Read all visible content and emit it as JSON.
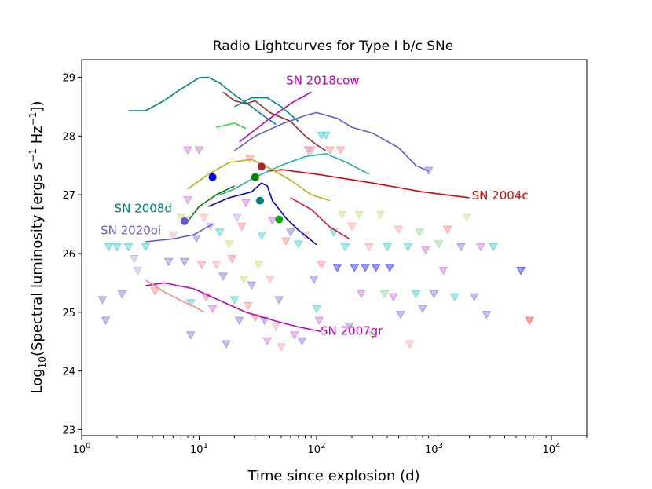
{
  "chart_data": {
    "type": "scatter",
    "title": "Radio Lightcurves for Type I b/c SNe",
    "xlabel": "Time since explosion (d)",
    "ylabel": "Log10(Spectral luminosity [ergs s^-1 Hz^-1])",
    "xscale": "log",
    "xlim": [
      1,
      20000
    ],
    "ylim": [
      22.9,
      29.3
    ],
    "x_ticks": [
      {
        "value": 1,
        "base": "10",
        "exp": "0"
      },
      {
        "value": 10,
        "base": "10",
        "exp": "1"
      },
      {
        "value": 100,
        "base": "10",
        "exp": "2"
      },
      {
        "value": 1000,
        "base": "10",
        "exp": "3"
      },
      {
        "value": 10000,
        "base": "10",
        "exp": "4"
      }
    ],
    "y_ticks": [
      "23",
      "24",
      "25",
      "26",
      "27",
      "28",
      "29"
    ],
    "annotations": [
      {
        "text": "SN 2018cow",
        "x": 55,
        "y": 28.88,
        "color": "#bf00bf"
      },
      {
        "text": "SN 2004c",
        "x": 2100,
        "y": 26.92,
        "color": "#e00000"
      },
      {
        "text": "SN 2008d",
        "x": 1.9,
        "y": 26.7,
        "color": "#008080"
      },
      {
        "text": "SN 2020oi",
        "x": 1.45,
        "y": 26.33,
        "color": "#6a5acd"
      },
      {
        "text": "SN 2007gr",
        "x": 108,
        "y": 24.62,
        "color": "#bf00bf"
      }
    ],
    "series": [
      {
        "name": "SN 2008d",
        "color": "#008080",
        "x": [
          2.5,
          3.5,
          5,
          7,
          10,
          12,
          15,
          20,
          28,
          35,
          45
        ],
        "y": [
          28.43,
          28.43,
          28.6,
          28.8,
          28.99,
          29.0,
          28.9,
          28.7,
          28.5,
          28.35,
          28.2
        ]
      },
      {
        "name": "SN 2018cow",
        "color": "#bf00bf",
        "x": [
          22,
          40,
          60,
          90
        ],
        "y": [
          27.9,
          28.3,
          28.55,
          28.75
        ]
      },
      {
        "name": "SN 2004c",
        "color": "#e00000",
        "x": [
          38,
          50,
          100,
          300,
          800,
          2000
        ],
        "y": [
          27.4,
          27.43,
          27.35,
          27.2,
          27.05,
          26.95
        ]
      },
      {
        "name": "SN 2007gr",
        "color": "#bf00bf",
        "x": [
          3.5,
          5,
          9,
          15,
          25,
          45,
          70,
          110
        ],
        "y": [
          25.45,
          25.5,
          25.4,
          25.2,
          25.0,
          24.85,
          24.75,
          24.67
        ]
      },
      {
        "name": "SN 2020oi",
        "color": "#6a5acd",
        "x": [
          3.5,
          6,
          9,
          13
        ],
        "y": [
          26.2,
          26.25,
          26.32,
          26.5
        ]
      },
      {
        "name": "brown",
        "color": "#a52a2a",
        "x": [
          16,
          20,
          25,
          30,
          40,
          60,
          80,
          100,
          120
        ],
        "y": [
          28.75,
          28.6,
          28.55,
          28.6,
          28.4,
          28.25,
          28.0,
          27.85,
          27.75
        ]
      },
      {
        "name": "slateblue",
        "color": "#6a5acd",
        "x": [
          20,
          30,
          50,
          80,
          100,
          150,
          200,
          300,
          500,
          700,
          900
        ],
        "y": [
          27.75,
          28.0,
          28.2,
          28.35,
          28.4,
          28.3,
          28.15,
          28.05,
          27.8,
          27.5,
          27.4
        ]
      },
      {
        "name": "lime",
        "color": "#33dd33",
        "x": [
          14,
          20,
          25
        ],
        "y": [
          28.15,
          28.22,
          28.13
        ]
      },
      {
        "name": "teal2",
        "color": "#008b8b",
        "x": [
          20,
          28,
          38,
          50,
          70
        ],
        "y": [
          28.5,
          28.65,
          28.65,
          28.5,
          28.25
        ]
      },
      {
        "name": "darkturquoise",
        "color": "#20b2aa",
        "x": [
          15,
          20,
          30,
          50,
          80,
          120,
          180,
          280
        ],
        "y": [
          27.0,
          27.1,
          27.3,
          27.5,
          27.65,
          27.7,
          27.55,
          27.35
        ]
      },
      {
        "name": "olive",
        "color": "#bdb016",
        "x": [
          8,
          12,
          18,
          28,
          40,
          60,
          90,
          130
        ],
        "y": [
          27.1,
          27.35,
          27.55,
          27.6,
          27.45,
          27.25,
          27.0,
          26.9
        ]
      },
      {
        "name": "darkgreen",
        "color": "#008000",
        "x": [
          8,
          10,
          14,
          20
        ],
        "y": [
          26.55,
          26.8,
          27.0,
          27.15
        ]
      },
      {
        "name": "blue",
        "color": "#0000dd",
        "x": [
          12,
          18,
          28,
          34,
          38,
          42,
          46,
          55,
          70,
          100
        ],
        "y": [
          26.8,
          26.95,
          27.05,
          27.2,
          27.15,
          26.9,
          26.8,
          26.6,
          26.4,
          26.15
        ]
      },
      {
        "name": "crimson",
        "color": "#dc143c",
        "x": [
          60,
          90,
          130,
          190
        ],
        "y": [
          26.95,
          26.75,
          26.45,
          26.25
        ]
      },
      {
        "name": "orchid",
        "color": "#ff8888",
        "x": [
          3.5,
          5,
          7,
          9,
          11
        ],
        "y": [
          25.55,
          25.35,
          25.2,
          25.1,
          25.0
        ]
      }
    ],
    "highlight_points": [
      {
        "x": 13,
        "y": 27.3,
        "color": "#0000ff"
      },
      {
        "x": 7.5,
        "y": 26.55,
        "color": "#6a5acd"
      },
      {
        "x": 34,
        "y": 27.48,
        "color": "#b22222"
      },
      {
        "x": 30,
        "y": 27.3,
        "color": "#008000"
      },
      {
        "x": 33,
        "y": 26.9,
        "color": "#008080"
      },
      {
        "x": 48,
        "y": 26.58,
        "color": "#00aa00"
      }
    ],
    "upper_limits": [
      {
        "x": 1.5,
        "y": 25.2,
        "c": "#9c8ce0"
      },
      {
        "x": 1.6,
        "y": 24.85,
        "c": "#9c8ce0"
      },
      {
        "x": 1.7,
        "y": 26.1,
        "c": "#5fd6d6"
      },
      {
        "x": 2.0,
        "y": 26.1,
        "c": "#5fd6d6"
      },
      {
        "x": 2.2,
        "y": 25.3,
        "c": "#9c8ce0"
      },
      {
        "x": 2.5,
        "y": 26.1,
        "c": "#5fd6d6"
      },
      {
        "x": 2.8,
        "y": 25.9,
        "c": "#c6b8e8"
      },
      {
        "x": 3.0,
        "y": 25.7,
        "c": "#c6b8e8"
      },
      {
        "x": 3.5,
        "y": 26.1,
        "c": "#5fd6d6"
      },
      {
        "x": 4.2,
        "y": 25.35,
        "c": "#ff9b9b"
      },
      {
        "x": 5.5,
        "y": 25.85,
        "c": "#9c8ce0"
      },
      {
        "x": 6.0,
        "y": 26.3,
        "c": "#ffb3b3"
      },
      {
        "x": 7.0,
        "y": 26.6,
        "c": "#dde090"
      },
      {
        "x": 7.5,
        "y": 25.85,
        "c": "#9c8ce0"
      },
      {
        "x": 8.0,
        "y": 27.75,
        "c": "#d68ae0"
      },
      {
        "x": 8.0,
        "y": 26.9,
        "c": "#d68ae0"
      },
      {
        "x": 8.5,
        "y": 25.15,
        "c": "#5fd6d6"
      },
      {
        "x": 8.5,
        "y": 24.6,
        "c": "#9c8ce0"
      },
      {
        "x": 9.5,
        "y": 26.25,
        "c": "#9c8ce0"
      },
      {
        "x": 10,
        "y": 27.75,
        "c": "#d68ae0"
      },
      {
        "x": 10.5,
        "y": 25.8,
        "c": "#ff9b9b"
      },
      {
        "x": 11,
        "y": 26.6,
        "c": "#ffb3b3"
      },
      {
        "x": 11.5,
        "y": 25.25,
        "c": "#ff7ab8"
      },
      {
        "x": 12.5,
        "y": 26.45,
        "c": "#c6b8e8"
      },
      {
        "x": 13,
        "y": 25.05,
        "c": "#d68ae0"
      },
      {
        "x": 14,
        "y": 25.8,
        "c": "#ffb3b3"
      },
      {
        "x": 15,
        "y": 26.35,
        "c": "#5fd6d6"
      },
      {
        "x": 16,
        "y": 25.6,
        "c": "#9c8ce0"
      },
      {
        "x": 17,
        "y": 24.45,
        "c": "#9c8ce0"
      },
      {
        "x": 18,
        "y": 26.15,
        "c": "#dde090"
      },
      {
        "x": 19,
        "y": 25.9,
        "c": "#ff9b9b"
      },
      {
        "x": 20,
        "y": 25.2,
        "c": "#5fd6d6"
      },
      {
        "x": 21,
        "y": 26.6,
        "c": "#c6b8e8"
      },
      {
        "x": 22,
        "y": 24.85,
        "c": "#9c8ce0"
      },
      {
        "x": 23,
        "y": 26.45,
        "c": "#ff9b9b"
      },
      {
        "x": 24,
        "y": 25.55,
        "c": "#dde090"
      },
      {
        "x": 25,
        "y": 26.85,
        "c": "#d68ae0"
      },
      {
        "x": 26,
        "y": 25.1,
        "c": "#ff9b9b"
      },
      {
        "x": 27,
        "y": 27.6,
        "c": "#ff9b9b"
      },
      {
        "x": 28,
        "y": 25.45,
        "c": "#9c8ce0"
      },
      {
        "x": 30,
        "y": 24.9,
        "c": "#ff9b9b"
      },
      {
        "x": 32,
        "y": 25.8,
        "c": "#dde090"
      },
      {
        "x": 34,
        "y": 26.3,
        "c": "#5fd6d6"
      },
      {
        "x": 36,
        "y": 24.85,
        "c": "#9c8ce0"
      },
      {
        "x": 38,
        "y": 24.5,
        "c": "#d68ae0"
      },
      {
        "x": 40,
        "y": 25.55,
        "c": "#ffb3b3"
      },
      {
        "x": 42,
        "y": 26.55,
        "c": "#d68ae0"
      },
      {
        "x": 45,
        "y": 24.75,
        "c": "#ffb3b3"
      },
      {
        "x": 48,
        "y": 25.2,
        "c": "#9c8ce0"
      },
      {
        "x": 50,
        "y": 24.4,
        "c": "#ffb3b3"
      },
      {
        "x": 55,
        "y": 26.2,
        "c": "#ff9b9b"
      },
      {
        "x": 60,
        "y": 26.35,
        "c": "#9c8ce0"
      },
      {
        "x": 65,
        "y": 24.6,
        "c": "#d68ae0"
      },
      {
        "x": 70,
        "y": 26.15,
        "c": "#5fd6d6"
      },
      {
        "x": 75,
        "y": 24.5,
        "c": "#9c8ce0"
      },
      {
        "x": 80,
        "y": 26.3,
        "c": "#ffb3b3"
      },
      {
        "x": 85,
        "y": 27.75,
        "c": "#d68ae0"
      },
      {
        "x": 90,
        "y": 27.75,
        "c": "#ff9b9b"
      },
      {
        "x": 95,
        "y": 25.55,
        "c": "#9c8ce0"
      },
      {
        "x": 100,
        "y": 25.05,
        "c": "#5fd6d6"
      },
      {
        "x": 105,
        "y": 24.85,
        "c": "#d68ae0"
      },
      {
        "x": 110,
        "y": 25.8,
        "c": "#ff9b9b"
      },
      {
        "x": 110,
        "y": 28.0,
        "c": "#5fd6d6"
      },
      {
        "x": 120,
        "y": 28.0,
        "c": "#5fd6d6"
      },
      {
        "x": 130,
        "y": 27.75,
        "c": "#ff9b9b"
      },
      {
        "x": 140,
        "y": 26.35,
        "c": "#5fd6d6"
      },
      {
        "x": 150,
        "y": 25.75,
        "c": "#4848ff"
      },
      {
        "x": 160,
        "y": 27.75,
        "c": "#ff9b9b"
      },
      {
        "x": 165,
        "y": 26.65,
        "c": "#dde090"
      },
      {
        "x": 175,
        "y": 26.1,
        "c": "#5fd6d6"
      },
      {
        "x": 190,
        "y": 24.75,
        "c": "#9c8ce0"
      },
      {
        "x": 200,
        "y": 26.45,
        "c": "#ffb3b3"
      },
      {
        "x": 210,
        "y": 25.75,
        "c": "#4848ff"
      },
      {
        "x": 230,
        "y": 26.65,
        "c": "#dde090"
      },
      {
        "x": 240,
        "y": 25.3,
        "c": "#d68ae0"
      },
      {
        "x": 260,
        "y": 25.75,
        "c": "#4848ff"
      },
      {
        "x": 280,
        "y": 26.1,
        "c": "#ffb3b3"
      },
      {
        "x": 300,
        "y": 24.6,
        "c": "#a0e0a0"
      },
      {
        "x": 320,
        "y": 25.75,
        "c": "#4848ff"
      },
      {
        "x": 350,
        "y": 26.65,
        "c": "#dde090"
      },
      {
        "x": 380,
        "y": 25.3,
        "c": "#a0e0a0"
      },
      {
        "x": 400,
        "y": 26.1,
        "c": "#5fd6d6"
      },
      {
        "x": 420,
        "y": 25.75,
        "c": "#4848ff"
      },
      {
        "x": 450,
        "y": 25.25,
        "c": "#d68ae0"
      },
      {
        "x": 500,
        "y": 26.4,
        "c": "#ffb3b3"
      },
      {
        "x": 520,
        "y": 24.95,
        "c": "#9c8ce0"
      },
      {
        "x": 600,
        "y": 26.1,
        "c": "#5fd6d6"
      },
      {
        "x": 620,
        "y": 24.45,
        "c": "#ffb3b3"
      },
      {
        "x": 700,
        "y": 25.3,
        "c": "#5fd6d6"
      },
      {
        "x": 750,
        "y": 26.35,
        "c": "#a0e0a0"
      },
      {
        "x": 800,
        "y": 25.05,
        "c": "#9c8ce0"
      },
      {
        "x": 850,
        "y": 26.05,
        "c": "#d68ae0"
      },
      {
        "x": 900,
        "y": 27.4,
        "c": "#9c8ce0"
      },
      {
        "x": 1000,
        "y": 25.3,
        "c": "#9c8ce0"
      },
      {
        "x": 1100,
        "y": 26.15,
        "c": "#a0e0a0"
      },
      {
        "x": 1200,
        "y": 25.7,
        "c": "#d68ae0"
      },
      {
        "x": 1300,
        "y": 26.4,
        "c": "#ff9b9b"
      },
      {
        "x": 1500,
        "y": 25.25,
        "c": "#5fd6d6"
      },
      {
        "x": 1700,
        "y": 26.1,
        "c": "#9c8ce0"
      },
      {
        "x": 1900,
        "y": 26.6,
        "c": "#dde090"
      },
      {
        "x": 2200,
        "y": 25.25,
        "c": "#9c8ce0"
      },
      {
        "x": 2500,
        "y": 26.1,
        "c": "#d68ae0"
      },
      {
        "x": 2800,
        "y": 24.95,
        "c": "#9c8ce0"
      },
      {
        "x": 3200,
        "y": 26.1,
        "c": "#5fd6d6"
      },
      {
        "x": 5500,
        "y": 25.7,
        "c": "#4848ff"
      },
      {
        "x": 6500,
        "y": 24.85,
        "c": "#ff6060"
      }
    ]
  }
}
